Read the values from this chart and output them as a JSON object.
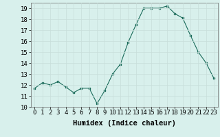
{
  "x": [
    0,
    1,
    2,
    3,
    4,
    5,
    6,
    7,
    8,
    9,
    10,
    11,
    12,
    13,
    14,
    15,
    16,
    17,
    18,
    19,
    20,
    21,
    22,
    23
  ],
  "y": [
    11.7,
    12.2,
    12.0,
    12.3,
    11.8,
    11.3,
    11.7,
    11.7,
    10.3,
    11.5,
    13.0,
    13.9,
    15.9,
    17.5,
    19.0,
    19.0,
    19.0,
    19.2,
    18.5,
    18.1,
    16.5,
    15.0,
    14.0,
    12.6
  ],
  "xlabel": "Humidex (Indice chaleur)",
  "ylim": [
    10,
    19.5
  ],
  "xlim": [
    -0.5,
    23.5
  ],
  "line_color": "#1a6b5a",
  "bg_color": "#d8f0ec",
  "grid_color": "#c8deda",
  "tick_fontsize": 6.5,
  "label_fontsize": 7.5,
  "yticks": [
    10,
    11,
    12,
    13,
    14,
    15,
    16,
    17,
    18,
    19
  ],
  "xticks": [
    0,
    1,
    2,
    3,
    4,
    5,
    6,
    7,
    8,
    9,
    10,
    11,
    12,
    13,
    14,
    15,
    16,
    17,
    18,
    19,
    20,
    21,
    22,
    23
  ],
  "xtick_labels": [
    "0",
    "1",
    "2",
    "3",
    "4",
    "5",
    "6",
    "7",
    "8",
    "9",
    "10",
    "11",
    "12",
    "13",
    "14",
    "15",
    "16",
    "17",
    "18",
    "19",
    "20",
    "21",
    "22",
    "23"
  ]
}
